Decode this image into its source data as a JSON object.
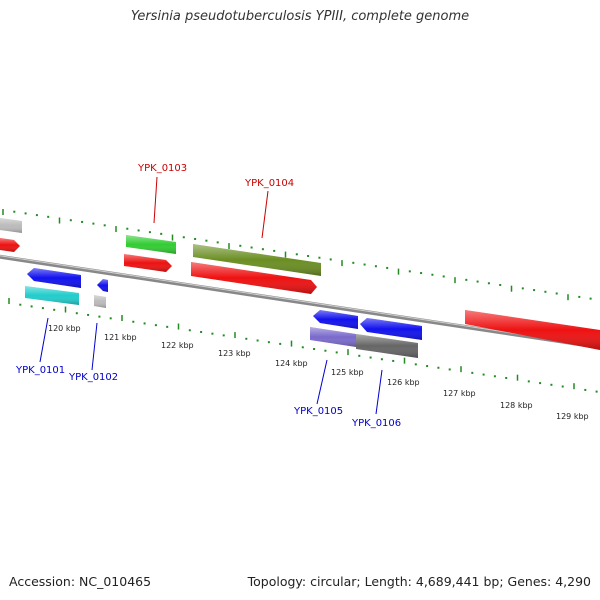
{
  "title": "Yersinia pseudotuberculosis YPIII, complete genome",
  "footer": {
    "accession": "Accession: NC_010465",
    "summary": "Topology: circular; Length: 4,689,441 bp; Genes: 4,290"
  },
  "scale_labels": [
    "120 kbp",
    "121 kbp",
    "122 kbp",
    "123 kbp",
    "124 kbp",
    "125 kbp",
    "126 kbp",
    "127 kbp",
    "128 kbp",
    "129 kbp"
  ],
  "gene_labels": [
    {
      "name": "YPK_0101",
      "color": "#0000cc"
    },
    {
      "name": "YPK_0102",
      "color": "#0000cc"
    },
    {
      "name": "YPK_0103",
      "color": "#cc0000"
    },
    {
      "name": "YPK_0104",
      "color": "#cc0000"
    },
    {
      "name": "YPK_0105",
      "color": "#0000cc"
    },
    {
      "name": "YPK_0106",
      "color": "#0000cc"
    }
  ],
  "colors": {
    "backbone": "#888888",
    "tick": "#228b22",
    "red": "#ee1111",
    "blue": "#1111ee",
    "cyan": "#22cccc",
    "green": "#33cc33",
    "olive": "#6b8e23",
    "gray": "#bbbbbb",
    "dark_gray": "#666666",
    "purple": "#7a6acc"
  }
}
